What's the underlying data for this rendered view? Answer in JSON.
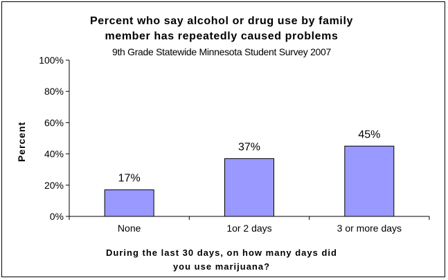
{
  "chart_data": {
    "type": "bar",
    "title_line1": "Percent who say alcohol or drug use by family",
    "title_line2": "member has repeatedly caused problems",
    "subtitle": "9th Grade Statewide Minnesota Student Survey 2007",
    "ylabel": "Percent",
    "xlabel_line1": "During the last 30 days, on how many days did",
    "xlabel_line2": "you use marijuana?",
    "categories": [
      "None",
      "1or 2 days",
      "3 or more days"
    ],
    "values": [
      17,
      37,
      45
    ],
    "value_labels": [
      "17%",
      "37%",
      "45%"
    ],
    "yticks": [
      "0%",
      "20%",
      "40%",
      "60%",
      "80%",
      "100%"
    ],
    "ylim": [
      0,
      100
    ],
    "bar_color": "#9999ff",
    "grid": false,
    "legend": "none"
  }
}
